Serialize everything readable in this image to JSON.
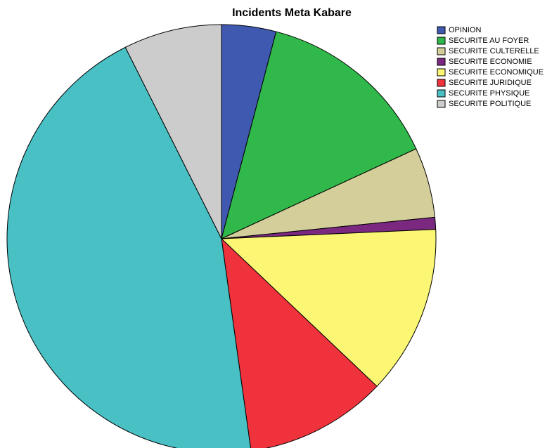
{
  "chart_data": {
    "type": "pie",
    "title": "Incidents Meta Kabare",
    "categories": [
      "OPINION",
      "SECURITE AU FOYER",
      "SECURITE CULTERELLE",
      "SECURITE ECONOMIE",
      "SECURITE ECONOMIQUE",
      "SECURITE JURIDIQUE",
      "SECURITE PHYSIQUE",
      "SECURITE POLITIQUE"
    ],
    "values": [
      4.1,
      14.0,
      5.3,
      0.9,
      12.8,
      10.7,
      44.8,
      7.4
    ],
    "colors": [
      "#3f58b0",
      "#30b84a",
      "#d4cf9a",
      "#7a2880",
      "#fbf775",
      "#f0323c",
      "#48c0c4",
      "#cccccc"
    ],
    "legend": "top-right"
  }
}
